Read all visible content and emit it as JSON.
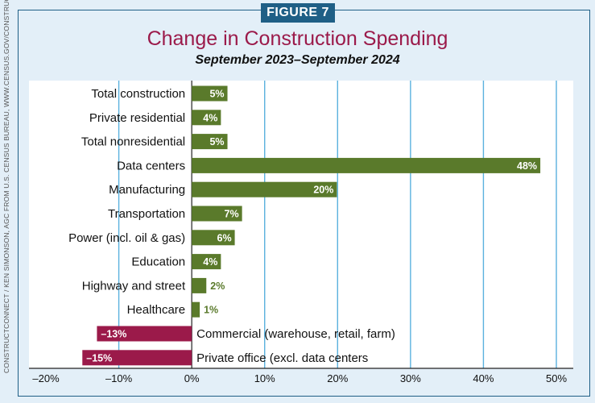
{
  "badge": "FIGURE 7",
  "credit": "CONSTRUCTCONNECT / KEN SIMONSON, AGC FROM U.S. CENSUS BUREAU, WWW.CENSUS.GOV/CONSTRUCTIONSPENDING",
  "colors": {
    "positive": "#5a7a2b",
    "negative": "#9b1a4a",
    "gridline": "#5ab1de",
    "title": "#9b1a4a"
  },
  "chart_data": {
    "type": "bar",
    "orientation": "horizontal",
    "title": "Change in Construction Spending",
    "subtitle": "September 2023–September 2024",
    "xlim": [
      -20,
      50
    ],
    "xticks": [
      -20,
      -10,
      0,
      10,
      20,
      30,
      40,
      50
    ],
    "xtick_labels": [
      "–20%",
      "–10%",
      "0%",
      "10%",
      "20%",
      "30%",
      "40%",
      "50%"
    ],
    "grid": true,
    "categories": [
      "Total construction",
      "Private residential",
      "Total nonresidential",
      "Data centers",
      "Manufacturing",
      "Transportation",
      "Power (incl. oil & gas)",
      "Education",
      "Highway and street",
      "Healthcare",
      "Commercial (warehouse, retail, farm)",
      "Private office (excl. data centers"
    ],
    "values": [
      4.9,
      4,
      4.9,
      47.8,
      19.9,
      6.9,
      5.9,
      4,
      2,
      1.1,
      -13,
      -15
    ],
    "value_labels": [
      "5%",
      "4%",
      "5%",
      "48%",
      "20%",
      "7%",
      "6%",
      "4%",
      "2%",
      "1%",
      "–13%",
      "–15%"
    ]
  }
}
